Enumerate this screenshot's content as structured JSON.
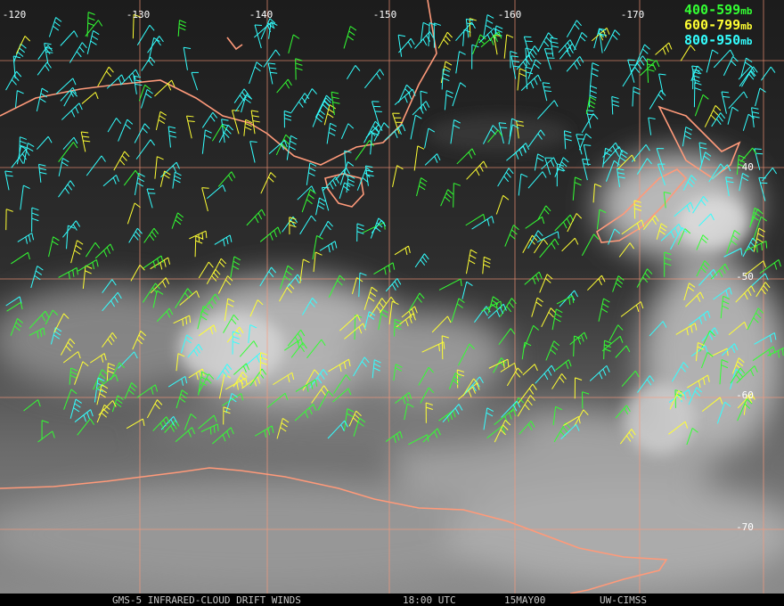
{
  "map": {
    "lon_labels": [
      -120,
      -130,
      -140,
      -150,
      -160,
      -170
    ],
    "lat_labels": [
      -40,
      -50,
      -60,
      -70
    ],
    "legend": [
      {
        "range": "400-599",
        "unit": "mb",
        "color": "#33ff33"
      },
      {
        "range": "600-799",
        "unit": "mb",
        "color": "#ffff33"
      },
      {
        "range": "800-950",
        "unit": "mb",
        "color": "#33ffff"
      }
    ],
    "footer": [
      "GMS-5 INFRARED-CLOUD DRIFT WINDS",
      "18:00 UTC",
      "15MAY00",
      "UW-CIMSS"
    ]
  }
}
